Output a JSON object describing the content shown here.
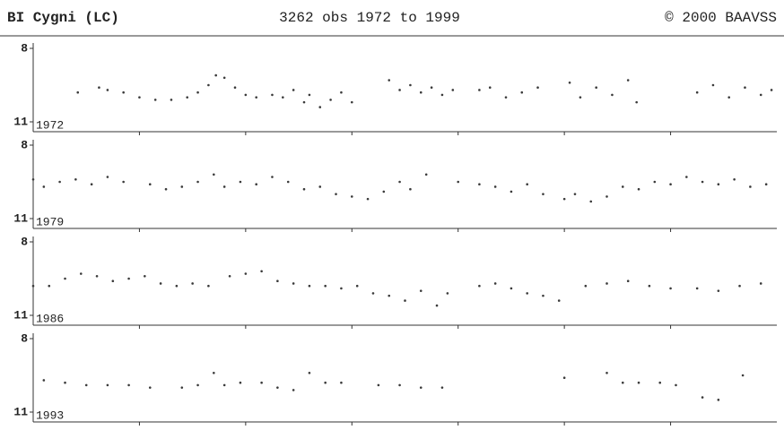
{
  "header": {
    "title": "BI Cygni (LC)",
    "subtitle": "3262 obs 1972 to 1999",
    "credit": "© 2000 BAAVSS"
  },
  "chart_data": [
    {
      "type": "scatter",
      "label": "1972",
      "color": "#3a3a3a",
      "xlim": [
        1972,
        1979
      ],
      "xticks": [
        1973,
        1974,
        1975,
        1976,
        1977,
        1978
      ],
      "ylim": [
        11,
        8
      ],
      "yticks": [
        8,
        11
      ],
      "x": [
        1972.42,
        1972.62,
        1972.7,
        1972.85,
        1973.0,
        1973.15,
        1973.3,
        1973.45,
        1973.55,
        1973.65,
        1973.72,
        1973.8,
        1973.9,
        1974.0,
        1974.1,
        1974.25,
        1974.35,
        1974.45,
        1974.55,
        1974.6,
        1974.7,
        1974.8,
        1974.9,
        1975.0,
        1975.35,
        1975.45,
        1975.55,
        1975.65,
        1975.75,
        1975.85,
        1975.95,
        1976.2,
        1976.3,
        1976.45,
        1976.6,
        1976.75,
        1977.05,
        1977.15,
        1977.3,
        1977.45,
        1977.6,
        1977.68,
        1978.25,
        1978.4,
        1978.55,
        1978.7,
        1978.85,
        1978.95
      ],
      "values": [
        9.8,
        9.6,
        9.7,
        9.8,
        10.0,
        10.1,
        10.1,
        10.0,
        9.8,
        9.5,
        9.1,
        9.2,
        9.6,
        9.9,
        10.0,
        9.9,
        10.0,
        9.7,
        10.2,
        9.9,
        10.4,
        10.1,
        9.8,
        10.2,
        9.3,
        9.7,
        9.5,
        9.8,
        9.6,
        9.9,
        9.7,
        9.7,
        9.6,
        10.0,
        9.8,
        9.6,
        9.4,
        10.0,
        9.6,
        9.9,
        9.3,
        10.2,
        9.8,
        9.5,
        10.0,
        9.6,
        9.9,
        9.7
      ]
    },
    {
      "type": "scatter",
      "label": "1979",
      "color": "#3a3a3a",
      "xlim": [
        1979,
        1986
      ],
      "xticks": [
        1980,
        1981,
        1982,
        1983,
        1984,
        1985
      ],
      "ylim": [
        11,
        8
      ],
      "yticks": [
        8,
        11
      ],
      "x": [
        1979.0,
        1979.1,
        1979.25,
        1979.4,
        1979.55,
        1979.7,
        1979.85,
        1980.1,
        1980.25,
        1980.4,
        1980.55,
        1980.7,
        1980.8,
        1980.95,
        1981.1,
        1981.25,
        1981.4,
        1981.55,
        1981.7,
        1981.85,
        1982.0,
        1982.15,
        1982.3,
        1982.45,
        1982.55,
        1982.7,
        1983.0,
        1983.2,
        1983.35,
        1983.5,
        1983.65,
        1983.8,
        1984.0,
        1984.1,
        1984.25,
        1984.4,
        1984.55,
        1984.7,
        1984.85,
        1985.0,
        1985.15,
        1985.3,
        1985.45,
        1985.6,
        1985.75,
        1985.9
      ],
      "values": [
        9.4,
        9.7,
        9.5,
        9.4,
        9.6,
        9.3,
        9.5,
        9.6,
        9.8,
        9.7,
        9.5,
        9.2,
        9.7,
        9.5,
        9.6,
        9.3,
        9.5,
        9.8,
        9.7,
        10.0,
        10.1,
        10.2,
        9.9,
        9.5,
        9.8,
        9.2,
        9.5,
        9.6,
        9.7,
        9.9,
        9.6,
        10.0,
        10.2,
        10.0,
        10.3,
        10.1,
        9.7,
        9.8,
        9.5,
        9.6,
        9.3,
        9.5,
        9.6,
        9.4,
        9.7,
        9.6
      ]
    },
    {
      "type": "scatter",
      "label": "1986",
      "color": "#3a3a3a",
      "xlim": [
        1986,
        1993
      ],
      "xticks": [
        1987,
        1988,
        1989,
        1990,
        1991,
        1992
      ],
      "ylim": [
        11,
        8
      ],
      "yticks": [
        8,
        11
      ],
      "x": [
        1986.0,
        1986.15,
        1986.3,
        1986.45,
        1986.6,
        1986.75,
        1986.9,
        1987.05,
        1987.2,
        1987.35,
        1987.5,
        1987.65,
        1987.85,
        1988.0,
        1988.15,
        1988.3,
        1988.45,
        1988.6,
        1988.75,
        1988.9,
        1989.05,
        1989.2,
        1989.35,
        1989.5,
        1989.65,
        1989.8,
        1989.9,
        1990.2,
        1990.35,
        1990.5,
        1990.65,
        1990.8,
        1990.95,
        1991.2,
        1991.4,
        1991.6,
        1991.8,
        1992.0,
        1992.25,
        1992.45,
        1992.65,
        1992.85
      ],
      "values": [
        9.8,
        9.8,
        9.5,
        9.3,
        9.4,
        9.6,
        9.5,
        9.4,
        9.7,
        9.8,
        9.7,
        9.8,
        9.4,
        9.3,
        9.2,
        9.6,
        9.7,
        9.8,
        9.8,
        9.9,
        9.8,
        10.1,
        10.2,
        10.4,
        10.0,
        10.6,
        10.1,
        9.8,
        9.7,
        9.9,
        10.1,
        10.2,
        10.4,
        9.8,
        9.7,
        9.6,
        9.8,
        9.9,
        9.9,
        10.0,
        9.8,
        9.7
      ]
    },
    {
      "type": "scatter",
      "label": "1993",
      "color": "#3a3a3a",
      "xlim": [
        1993,
        2000
      ],
      "xticks": [
        1994,
        1995,
        1996,
        1997,
        1998,
        1999
      ],
      "ylim": [
        11,
        8
      ],
      "yticks": [
        8,
        11
      ],
      "x": [
        1993.1,
        1993.3,
        1993.5,
        1993.7,
        1993.9,
        1994.1,
        1994.4,
        1994.55,
        1994.7,
        1994.8,
        1994.95,
        1995.15,
        1995.3,
        1995.45,
        1995.6,
        1995.75,
        1995.9,
        1996.25,
        1996.45,
        1996.65,
        1996.85,
        1998.0,
        1998.4,
        1998.55,
        1998.7,
        1998.9,
        1999.05,
        1999.3,
        1999.45,
        1999.68
      ],
      "values": [
        9.7,
        9.8,
        9.9,
        9.9,
        9.9,
        10.0,
        10.0,
        9.9,
        9.4,
        9.9,
        9.8,
        9.8,
        10.0,
        10.1,
        9.4,
        9.8,
        9.8,
        9.9,
        9.9,
        10.0,
        10.0,
        9.6,
        9.4,
        9.8,
        9.8,
        9.8,
        9.9,
        10.4,
        10.5,
        9.5
      ]
    }
  ]
}
